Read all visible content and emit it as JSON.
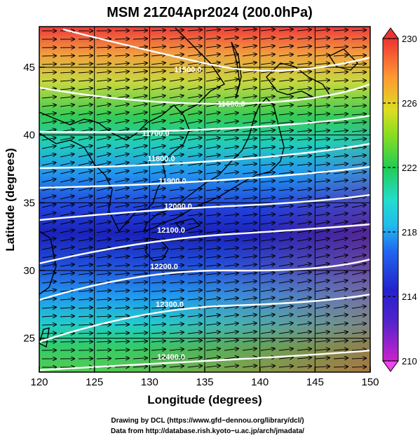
{
  "title": "MSM 21Z04Apr2024 (200.0hPa)",
  "x_axis": {
    "label": "Longitude (degrees)",
    "range": [
      120,
      150
    ],
    "ticks": [
      "120",
      "125",
      "130",
      "135",
      "140",
      "145",
      "150"
    ]
  },
  "y_axis": {
    "label": "Latitude  (degrees)",
    "range": [
      22.5,
      48
    ],
    "ticks": [
      "25",
      "30",
      "35",
      "40",
      "45"
    ]
  },
  "colorbar": {
    "range": [
      210,
      230
    ],
    "ticks": [
      "210",
      "214",
      "218",
      "222",
      "226",
      "230"
    ],
    "colors": [
      "#cc22cc",
      "#2222cc",
      "#2299ee",
      "#22ddcc",
      "#22cc55",
      "#aadd22",
      "#eecc22",
      "#ff8833",
      "#ee3333"
    ]
  },
  "contours": [
    {
      "label": "11500.0"
    },
    {
      "label": "11600.0"
    },
    {
      "label": "11700.0"
    },
    {
      "label": "11800.0"
    },
    {
      "label": "11900.0"
    },
    {
      "label": "12000.0"
    },
    {
      "label": "12100.0"
    },
    {
      "label": "12200.0"
    },
    {
      "label": "12300.0"
    },
    {
      "label": "12400.0"
    }
  ],
  "credits": [
    "Drawing by DCL (https://www.gfd−dennou.org/library/dcl/)",
    "Data from http://database.rish.kyoto−u.ac.jp/arch/jmadata/"
  ]
}
